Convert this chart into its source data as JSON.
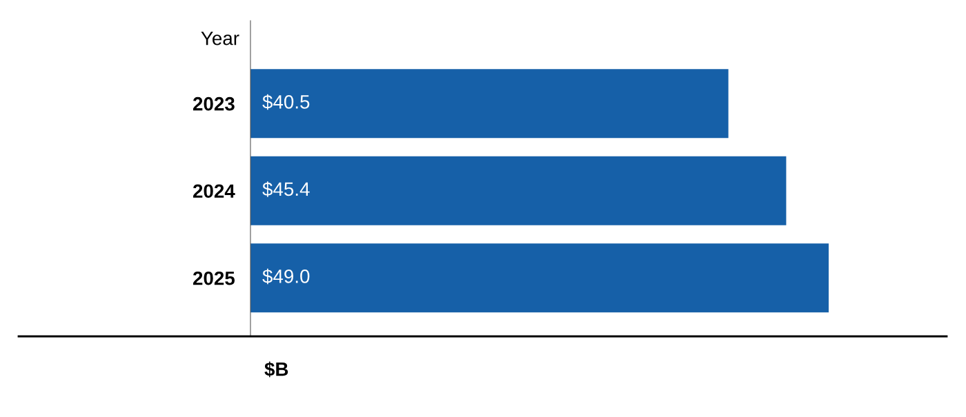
{
  "chart_data": {
    "type": "bar",
    "orientation": "horizontal",
    "ylabel": "Year",
    "xlabel": "$B",
    "categories": [
      "2023",
      "2024",
      "2025"
    ],
    "values": [
      40.5,
      45.4,
      49.0
    ],
    "value_labels": [
      "$40.5",
      "$45.4",
      "$49.0"
    ],
    "color": "#1660a8",
    "xlim": [
      0,
      59
    ],
    "grid": false,
    "legend": false
  }
}
